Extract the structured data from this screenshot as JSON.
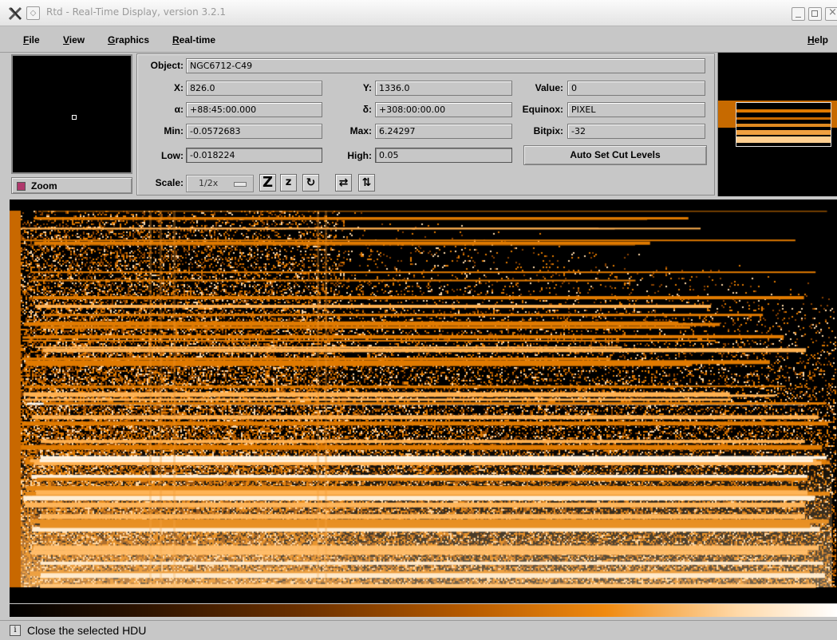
{
  "window": {
    "title": "Rtd - Real-Time Display, version 3.2.1",
    "icons": [
      "x-logo-icon",
      "window-menu-icon",
      "minimize-icon",
      "maximize-icon",
      "close-icon"
    ]
  },
  "menubar": {
    "items": [
      {
        "label": "File"
      },
      {
        "label": "View"
      },
      {
        "label": "Graphics"
      },
      {
        "label": "Real-time"
      }
    ],
    "help": "Help"
  },
  "panel": {
    "object_label": "Object:",
    "object_value": "NGC6712-C49",
    "x_label": "X:",
    "x_value": "826.0",
    "y_label": "Y:",
    "y_value": "1336.0",
    "value_label": "Value:",
    "value_value": "0",
    "alpha_label": "α:",
    "alpha_value": "+88:45:00.000",
    "delta_label": "δ:",
    "delta_value": "+308:00:00.00",
    "equinox_label": "Equinox:",
    "equinox_value": "PIXEL",
    "min_label": "Min:",
    "min_value": "-0.0572683",
    "max_label": "Max:",
    "max_value": "6.24297",
    "bitpix_label": "Bitpix:",
    "bitpix_value": "-32",
    "low_label": "Low:",
    "low_value": "-0.018224",
    "high_label": "High:",
    "high_value": "0.05",
    "autocut_label": "Auto Set Cut Levels",
    "scale_label": "Scale:",
    "scale_value": "1/2x",
    "tools": [
      {
        "glyph": "Z",
        "icon": "zoom-in-icon"
      },
      {
        "glyph": "z",
        "icon": "zoom-out-icon"
      },
      {
        "glyph": "↻",
        "icon": "rotate-icon"
      },
      {
        "glyph": "⇄",
        "icon": "flip-x-icon"
      },
      {
        "glyph": "⇅",
        "icon": "flip-y-icon"
      }
    ]
  },
  "zoom": {
    "label": "Zoom"
  },
  "status": {
    "icon": "info-icon",
    "glyph": "i",
    "text": "Close the selected HDU"
  },
  "colors": {
    "image_orange": "#e07a00",
    "background": "#c7c7c7",
    "zoom_check": "#b0386c"
  }
}
